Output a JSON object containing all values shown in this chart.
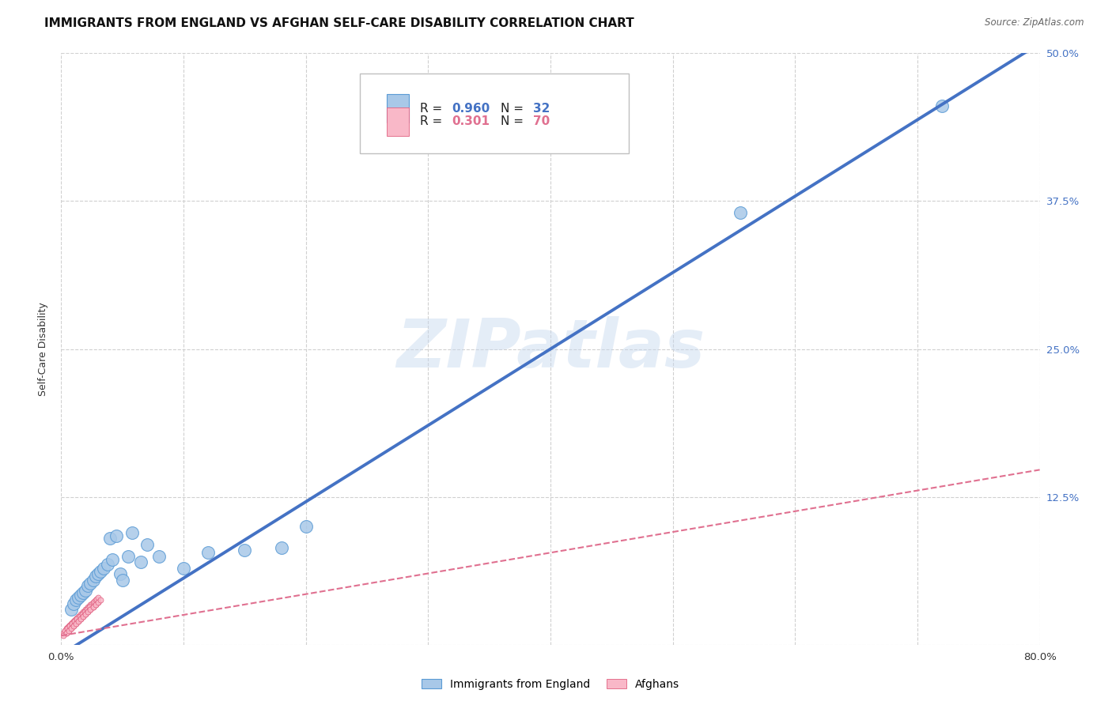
{
  "title": "IMMIGRANTS FROM ENGLAND VS AFGHAN SELF-CARE DISABILITY CORRELATION CHART",
  "source": "Source: ZipAtlas.com",
  "ylabel": "Self-Care Disability",
  "xlim": [
    0,
    0.8
  ],
  "ylim": [
    0,
    0.5
  ],
  "xticks": [
    0.0,
    0.1,
    0.2,
    0.3,
    0.4,
    0.5,
    0.6,
    0.7,
    0.8
  ],
  "ytick_positions": [
    0.0,
    0.125,
    0.25,
    0.375,
    0.5
  ],
  "yticklabels": [
    "",
    "12.5%",
    "25.0%",
    "37.5%",
    "50.0%"
  ],
  "color_england": "#a8c8e8",
  "color_england_edge": "#5b9bd5",
  "color_afghan": "#f9b8c8",
  "color_afghan_edge": "#e06080",
  "color_england_line": "#4472c4",
  "color_afghan_line": "#e07090",
  "watermark": "ZIPatlas",
  "england_scatter_x": [
    0.008,
    0.01,
    0.012,
    0.014,
    0.016,
    0.018,
    0.02,
    0.022,
    0.024,
    0.026,
    0.028,
    0.03,
    0.032,
    0.035,
    0.038,
    0.042,
    0.048,
    0.055,
    0.065,
    0.08,
    0.1,
    0.12,
    0.15,
    0.18,
    0.04,
    0.045,
    0.05,
    0.058,
    0.07,
    0.2,
    0.555,
    0.72
  ],
  "england_scatter_y": [
    0.03,
    0.035,
    0.038,
    0.04,
    0.042,
    0.044,
    0.046,
    0.05,
    0.052,
    0.055,
    0.058,
    0.06,
    0.062,
    0.065,
    0.068,
    0.072,
    0.06,
    0.075,
    0.07,
    0.075,
    0.065,
    0.078,
    0.08,
    0.082,
    0.09,
    0.092,
    0.055,
    0.095,
    0.085,
    0.1,
    0.365,
    0.455
  ],
  "afghan_scatter_x": [
    0.002,
    0.003,
    0.004,
    0.005,
    0.006,
    0.007,
    0.008,
    0.009,
    0.01,
    0.011,
    0.012,
    0.013,
    0.014,
    0.015,
    0.016,
    0.017,
    0.018,
    0.019,
    0.02,
    0.021,
    0.022,
    0.023,
    0.024,
    0.025,
    0.026,
    0.027,
    0.028,
    0.029,
    0.03,
    0.003,
    0.005,
    0.007,
    0.009,
    0.011,
    0.013,
    0.015,
    0.017,
    0.019,
    0.021,
    0.023,
    0.004,
    0.006,
    0.008,
    0.01,
    0.012,
    0.014,
    0.016,
    0.018,
    0.02,
    0.022,
    0.024,
    0.026,
    0.028,
    0.03,
    0.002,
    0.004,
    0.006,
    0.008,
    0.01,
    0.012,
    0.014,
    0.016,
    0.018,
    0.02,
    0.022,
    0.024,
    0.026,
    0.028,
    0.03,
    0.032
  ],
  "afghan_scatter_y": [
    0.01,
    0.012,
    0.014,
    0.015,
    0.016,
    0.017,
    0.018,
    0.019,
    0.02,
    0.021,
    0.022,
    0.023,
    0.024,
    0.025,
    0.026,
    0.027,
    0.028,
    0.029,
    0.03,
    0.031,
    0.032,
    0.033,
    0.034,
    0.035,
    0.036,
    0.037,
    0.038,
    0.039,
    0.04,
    0.012,
    0.014,
    0.016,
    0.018,
    0.02,
    0.022,
    0.024,
    0.026,
    0.028,
    0.03,
    0.032,
    0.01,
    0.012,
    0.014,
    0.016,
    0.018,
    0.02,
    0.022,
    0.024,
    0.026,
    0.028,
    0.03,
    0.032,
    0.034,
    0.036,
    0.008,
    0.01,
    0.012,
    0.014,
    0.016,
    0.018,
    0.02,
    0.022,
    0.024,
    0.026,
    0.028,
    0.03,
    0.032,
    0.034,
    0.036,
    0.038
  ],
  "england_line_x": [
    0.0,
    0.8
  ],
  "england_line_y": [
    -0.008,
    0.508
  ],
  "afghan_line_x": [
    0.0,
    0.8
  ],
  "afghan_line_y": [
    0.008,
    0.148
  ],
  "grid_color": "#d0d0d0",
  "bg_color": "#ffffff",
  "title_fontsize": 11,
  "axis_label_fontsize": 9,
  "tick_fontsize": 9.5,
  "tick_color_right": "#4472c4",
  "legend_r1_val": "0.960",
  "legend_n1_val": "32",
  "legend_r2_val": "0.301",
  "legend_n2_val": "70"
}
